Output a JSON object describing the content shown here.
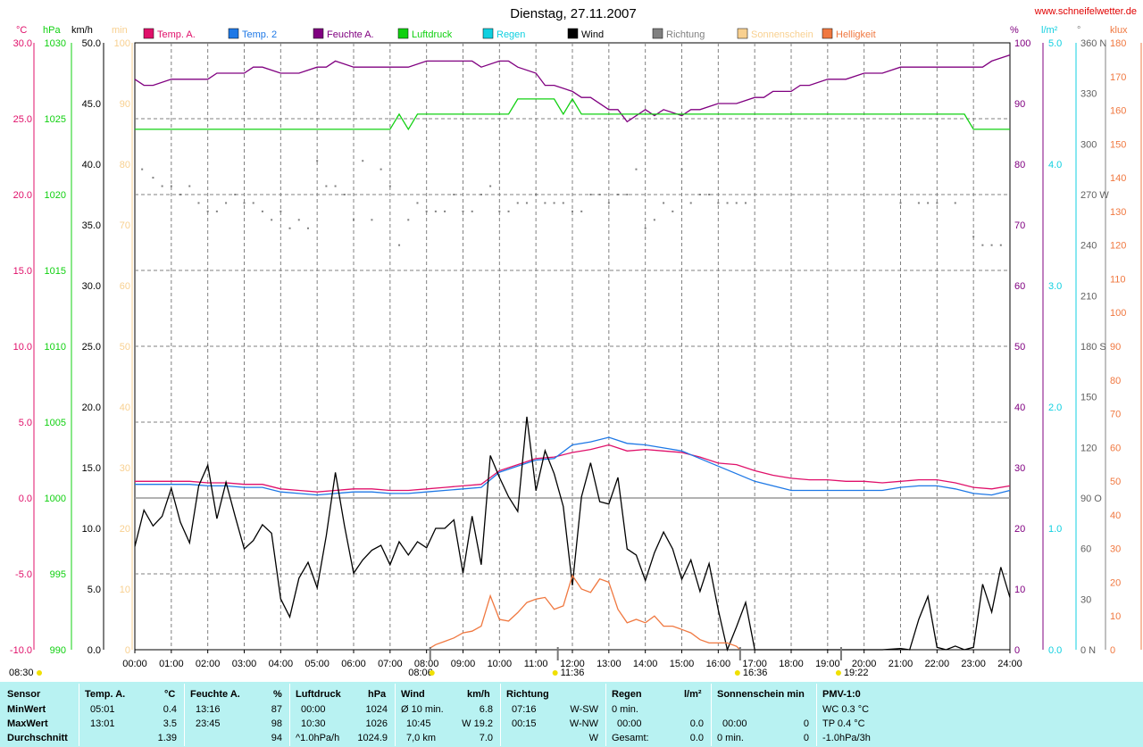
{
  "header": {
    "title": "Dienstag, 27.11.2007",
    "site": "www.schneifelwetter.de"
  },
  "colors": {
    "temp_a": "#e0106a",
    "temp_2": "#1e78e6",
    "feuchte": "#800080",
    "luftdruck": "#10d010",
    "regen": "#10d0e0",
    "wind": "#000000",
    "richtung": "#808080",
    "sonnenschein": "#f8d090",
    "helligkeit": "#f07840",
    "grid": "#808080",
    "stats_bg": "#b8f2f2"
  },
  "axes": {
    "temp": {
      "unit": "°C",
      "ticks": [
        "30.0",
        "25.0",
        "20.0",
        "15.0",
        "10.0",
        "5.0",
        "0.0",
        "-5.0",
        "-10.0"
      ]
    },
    "hpa": {
      "unit": "hPa",
      "ticks": [
        "1030",
        "1025",
        "1020",
        "1015",
        "1010",
        "1005",
        "1000",
        "995",
        "990"
      ]
    },
    "kmh": {
      "unit": "km/h",
      "ticks": [
        "50.0",
        "45.0",
        "40.0",
        "35.0",
        "30.0",
        "25.0",
        "20.0",
        "15.0",
        "10.0",
        "5.0",
        "0.0"
      ]
    },
    "min": {
      "unit": "min",
      "ticks": [
        "100",
        "90",
        "80",
        "70",
        "60",
        "50",
        "40",
        "30",
        "20",
        "10",
        "0"
      ]
    },
    "pct": {
      "unit": "%",
      "ticks": [
        "100",
        "90",
        "80",
        "70",
        "60",
        "50",
        "40",
        "30",
        "20",
        "10",
        "0"
      ]
    },
    "lm2": {
      "unit": "l/m²",
      "ticks": [
        "5.0",
        "4.0",
        "3.0",
        "2.0",
        "1.0",
        "0.0"
      ]
    },
    "deg": {
      "unit": "°",
      "ticks": [
        "360 N",
        "330",
        "300",
        "270 W",
        "240",
        "210",
        "180 S",
        "150",
        "120",
        "90 O",
        "60",
        "30",
        "0 N"
      ]
    },
    "klux": {
      "unit": "klux",
      "ticks": [
        "180",
        "170",
        "160",
        "150",
        "140",
        "130",
        "120",
        "110",
        "100",
        "90",
        "80",
        "70",
        "60",
        "50",
        "40",
        "30",
        "20",
        "10",
        "0"
      ]
    },
    "time": {
      "ticks": [
        "00:00",
        "01:00",
        "02:00",
        "03:00",
        "04:00",
        "05:00",
        "06:00",
        "07:00",
        "08:00",
        "09:00",
        "10:00",
        "11:00",
        "12:00",
        "13:00",
        "14:00",
        "15:00",
        "16:00",
        "17:00",
        "18:00",
        "19:00",
        "20:00",
        "21:00",
        "22:00",
        "23:00",
        "24:00"
      ]
    }
  },
  "sun_markers": [
    {
      "label": "08:30",
      "hour": 8.5
    },
    {
      "label": "08:06",
      "hour": 8.1
    },
    {
      "label": "11:36",
      "hour": 11.6
    },
    {
      "label": "16:36",
      "hour": 16.6
    },
    {
      "label": "19:22",
      "hour": 19.37
    }
  ],
  "chart_data": {
    "type": "line",
    "title": "Dienstag, 27.11.2007",
    "x_unit": "Uhrzeit",
    "xlim": [
      0,
      24
    ],
    "legend_position": "top",
    "grid": true,
    "series": [
      {
        "name": "Temp. A.",
        "key": "temp_a",
        "axis": "temp",
        "range": [
          -10,
          30
        ],
        "x": [
          0,
          0.5,
          1,
          1.5,
          2,
          2.5,
          3,
          3.5,
          4,
          4.5,
          5,
          5.5,
          6,
          6.5,
          7,
          7.5,
          8,
          8.5,
          9,
          9.5,
          10,
          10.5,
          11,
          11.5,
          12,
          12.5,
          13,
          13.5,
          14,
          14.5,
          15,
          15.5,
          16,
          16.5,
          17,
          17.5,
          18,
          18.5,
          19,
          19.5,
          20,
          20.5,
          21,
          21.5,
          22,
          22.5,
          23,
          23.5,
          24
        ],
        "y": [
          1.1,
          1.1,
          1.1,
          1.1,
          1.0,
          1.0,
          0.9,
          0.9,
          0.6,
          0.5,
          0.4,
          0.5,
          0.6,
          0.6,
          0.5,
          0.5,
          0.6,
          0.7,
          0.8,
          0.9,
          1.8,
          2.2,
          2.6,
          2.7,
          3.0,
          3.2,
          3.5,
          3.1,
          3.2,
          3.1,
          3.0,
          2.7,
          2.3,
          2.2,
          1.8,
          1.5,
          1.3,
          1.2,
          1.2,
          1.1,
          1.1,
          1.0,
          1.1,
          1.2,
          1.2,
          1.0,
          0.7,
          0.6,
          0.8
        ]
      },
      {
        "name": "Temp. 2",
        "key": "temp_2",
        "axis": "temp",
        "range": [
          -10,
          30
        ],
        "x": [
          0,
          0.5,
          1,
          1.5,
          2,
          2.5,
          3,
          3.5,
          4,
          4.5,
          5,
          5.5,
          6,
          6.5,
          7,
          7.5,
          8,
          8.5,
          9,
          9.5,
          10,
          10.5,
          11,
          11.5,
          12,
          12.5,
          13,
          13.5,
          14,
          14.5,
          15,
          15.5,
          16,
          16.5,
          17,
          17.5,
          18,
          18.5,
          19,
          19.5,
          20,
          20.5,
          21,
          21.5,
          22,
          22.5,
          23,
          23.5,
          24
        ],
        "y": [
          0.9,
          0.9,
          0.9,
          0.9,
          0.8,
          0.8,
          0.7,
          0.7,
          0.4,
          0.3,
          0.2,
          0.3,
          0.4,
          0.4,
          0.3,
          0.3,
          0.4,
          0.5,
          0.6,
          0.7,
          1.7,
          2.1,
          2.5,
          2.6,
          3.5,
          3.7,
          4.0,
          3.6,
          3.5,
          3.3,
          3.1,
          2.6,
          2.1,
          1.6,
          1.1,
          0.8,
          0.5,
          0.5,
          0.5,
          0.5,
          0.5,
          0.5,
          0.7,
          0.8,
          0.8,
          0.6,
          0.3,
          0.2,
          0.5
        ]
      },
      {
        "name": "Feuchte A.",
        "key": "feuchte",
        "axis": "pct",
        "range": [
          0,
          100
        ],
        "x": [
          0,
          0.25,
          0.5,
          1,
          1.5,
          2,
          2.25,
          2.5,
          3,
          3.25,
          3.5,
          4,
          4.25,
          4.5,
          5,
          5.25,
          5.5,
          6,
          6.25,
          6.5,
          7,
          7.25,
          7.5,
          8,
          8.25,
          8.5,
          9,
          9.25,
          9.5,
          10,
          10.25,
          10.5,
          11,
          11.25,
          11.5,
          12,
          12.25,
          12.5,
          13,
          13.25,
          13.5,
          14,
          14.25,
          14.5,
          15,
          15.25,
          15.5,
          16,
          16.25,
          16.5,
          17,
          17.25,
          17.5,
          18,
          18.25,
          18.5,
          19,
          19.25,
          19.5,
          20,
          20.25,
          20.5,
          21,
          21.5,
          22,
          22.5,
          23,
          23.25,
          23.5,
          24
        ],
        "y": [
          94,
          93,
          93,
          94,
          94,
          94,
          95,
          95,
          95,
          96,
          96,
          95,
          95,
          95,
          96,
          96,
          97,
          96,
          96,
          96,
          96,
          96,
          96,
          97,
          97,
          97,
          97,
          97,
          96,
          97,
          97,
          96,
          95,
          93,
          93,
          92,
          91,
          91,
          89,
          89,
          87,
          89,
          88,
          89,
          88,
          89,
          89,
          90,
          90,
          90,
          91,
          91,
          92,
          92,
          93,
          93,
          94,
          94,
          94,
          95,
          95,
          95,
          96,
          96,
          96,
          96,
          96,
          96,
          97,
          98
        ]
      },
      {
        "name": "Luftdruck",
        "key": "luftdruck",
        "axis": "hpa",
        "range": [
          990,
          1030
        ],
        "x": [
          0,
          7,
          7.25,
          7.5,
          7.75,
          8,
          8,
          9,
          10,
          10.25,
          10.5,
          11,
          11.5,
          11.75,
          12,
          12.25,
          12.5,
          13,
          14,
          15,
          16,
          17,
          18,
          19,
          20,
          21,
          22,
          22.75,
          23,
          24
        ],
        "y": [
          1024.3,
          1024.3,
          1025.3,
          1024.3,
          1025.3,
          1025.3,
          1025.3,
          1025.3,
          1025.3,
          1025.3,
          1026.3,
          1026.3,
          1026.3,
          1025.3,
          1026.3,
          1025.3,
          1025.3,
          1025.3,
          1025.3,
          1025.3,
          1025.3,
          1025.3,
          1025.3,
          1025.3,
          1025.3,
          1025.3,
          1025.3,
          1025.3,
          1024.3,
          1024.3
        ]
      },
      {
        "name": "Regen",
        "key": "regen",
        "axis": "lm2",
        "range": [
          0,
          5
        ],
        "x": [
          0,
          24
        ],
        "y": [
          0.0,
          0.0
        ]
      },
      {
        "name": "Wind",
        "key": "wind",
        "axis": "kmh",
        "range": [
          0,
          50
        ],
        "x": [
          0,
          0.25,
          0.5,
          0.75,
          1,
          1.25,
          1.5,
          1.75,
          2,
          2.25,
          2.5,
          2.75,
          3,
          3.25,
          3.5,
          3.75,
          4,
          4.25,
          4.5,
          4.75,
          5,
          5.25,
          5.5,
          5.75,
          6,
          6.25,
          6.5,
          6.75,
          7,
          7.25,
          7.5,
          7.75,
          8,
          8.25,
          8.5,
          8.75,
          9,
          9.25,
          9.5,
          9.75,
          10,
          10.25,
          10.5,
          10.75,
          11,
          11.25,
          11.5,
          11.75,
          12,
          12.25,
          12.5,
          12.75,
          13,
          13.25,
          13.5,
          13.75,
          14,
          14.25,
          14.5,
          14.75,
          15,
          15.25,
          15.5,
          15.75,
          16,
          16.25,
          16.5,
          16.75,
          17,
          17.5,
          18,
          18.5,
          19,
          19.5,
          20,
          20.5,
          21,
          21.25,
          21.5,
          21.75,
          22,
          22.25,
          22.5,
          22.75,
          23,
          23.25,
          23.5,
          23.75,
          24
        ],
        "y": [
          8.5,
          11.5,
          10.2,
          11.0,
          13.3,
          10.5,
          8.8,
          13.5,
          15.2,
          10.8,
          13.8,
          11.0,
          8.3,
          9.0,
          10.3,
          9.6,
          4.2,
          2.7,
          5.9,
          7.2,
          5.1,
          9.4,
          14.6,
          10.2,
          6.3,
          7.4,
          8.2,
          8.6,
          7.0,
          8.9,
          7.8,
          8.9,
          8.4,
          10.0,
          10.0,
          10.7,
          6.3,
          11.0,
          7.0,
          16.0,
          14.2,
          12.6,
          11.4,
          19.2,
          13.1,
          16.4,
          14.5,
          11.8,
          5.3,
          12.6,
          15.4,
          12.2,
          12.0,
          14.2,
          8.3,
          7.8,
          5.7,
          8.0,
          9.7,
          8.3,
          5.8,
          7.4,
          4.8,
          7.1,
          3.3,
          0.0,
          1.9,
          3.9,
          0.0,
          0.0,
          0.0,
          0.0,
          0.0,
          0.0,
          0.0,
          0.0,
          0.1,
          0.0,
          2.5,
          4.4,
          0.2,
          0.0,
          0.3,
          0.0,
          0.2,
          5.4,
          3.1,
          6.8,
          4.3
        ]
      },
      {
        "name": "Richtung",
        "key": "richtung",
        "axis": "deg",
        "range": [
          0,
          360
        ],
        "x": [
          0.2,
          0.5,
          0.75,
          1,
          1.25,
          1.5,
          1.75,
          2,
          2.25,
          2.5,
          2.75,
          3,
          3.25,
          3.5,
          3.75,
          4,
          4.25,
          4.5,
          4.75,
          5,
          5.25,
          5.5,
          5.75,
          6,
          6.25,
          6.5,
          6.75,
          7,
          7.25,
          7.5,
          7.75,
          8,
          8.25,
          8.5,
          8.75,
          9,
          9.25,
          9.5,
          9.75,
          10,
          10.25,
          10.5,
          10.75,
          11,
          11.25,
          11.5,
          11.75,
          12,
          12.25,
          12.5,
          12.75,
          13,
          13.25,
          13.5,
          13.75,
          14,
          14.25,
          14.5,
          14.75,
          15,
          15.25,
          15.5,
          15.75,
          16,
          16.25,
          16.5,
          16.75,
          21,
          21.5,
          21.75,
          22,
          22.5,
          23,
          23.25,
          23.5,
          23.75
        ],
        "y": [
          285,
          280,
          275,
          275,
          270,
          275,
          265,
          260,
          260,
          265,
          270,
          265,
          265,
          260,
          255,
          260,
          250,
          255,
          250,
          290,
          275,
          275,
          270,
          255,
          290,
          255,
          285,
          275,
          240,
          255,
          265,
          260,
          260,
          260,
          270,
          260,
          260,
          270,
          275,
          260,
          260,
          265,
          265,
          270,
          265,
          265,
          265,
          260,
          260,
          270,
          270,
          265,
          270,
          270,
          285,
          250,
          255,
          265,
          260,
          285,
          265,
          270,
          270,
          265,
          265,
          265,
          265,
          265,
          265,
          265,
          265,
          265,
          245,
          240,
          240,
          240
        ]
      },
      {
        "name": "Sonnenschein",
        "key": "sonnenschein",
        "axis": "min",
        "range": [
          0,
          100
        ],
        "x": [
          0,
          24
        ],
        "y": [
          0,
          0
        ]
      },
      {
        "name": "Helligkeit",
        "key": "helligkeit",
        "axis": "klux",
        "range": [
          0,
          180
        ],
        "x": [
          8.1,
          8.25,
          8.5,
          8.75,
          9,
          9.25,
          9.5,
          9.75,
          10,
          10.25,
          10.5,
          10.75,
          11,
          11.25,
          11.5,
          11.75,
          12,
          12.25,
          12.5,
          12.75,
          13,
          13.25,
          13.5,
          13.75,
          14,
          14.25,
          14.5,
          14.75,
          15,
          15.25,
          15.5,
          15.75,
          16,
          16.25,
          16.5,
          16.6
        ],
        "y": [
          0.5,
          1.5,
          2.5,
          3.5,
          5,
          5.5,
          7,
          16,
          9,
          8.5,
          11,
          14,
          15,
          15.5,
          12,
          13,
          22,
          18,
          17,
          21,
          20,
          12,
          8,
          9,
          8,
          10,
          7,
          7,
          6,
          5,
          3,
          2,
          2,
          2,
          1,
          0
        ]
      }
    ]
  },
  "stats": {
    "headers": {
      "sensor": "Sensor",
      "temp": "Temp. A.",
      "temp_unit": "°C",
      "feuchte": "Feuchte A.",
      "feuchte_unit": "%",
      "luftdruck": "Luftdruck",
      "luftdruck_unit": "hPa",
      "wind": "Wind",
      "wind_unit": "km/h",
      "richtung": "Richtung",
      "regen": "Regen",
      "regen_unit": "l/m²",
      "sonne": "Sonnenschein min",
      "pmv": "PMV-1:0"
    },
    "labels": {
      "min": "MinWert",
      "max": "MaxWert",
      "avg": "Durchschnitt"
    },
    "temp": {
      "min_time": "05:01",
      "min_val": "0.4",
      "max_time": "13:01",
      "max_val": "3.5",
      "avg": "1.39"
    },
    "feuchte": {
      "min_time": "13:16",
      "min_val": "87",
      "max_time": "23:45",
      "max_val": "98",
      "avg": "94"
    },
    "luftdruck": {
      "min_time": "00:00",
      "min_val": "1024",
      "max_time": "10:30",
      "max_val": "1026",
      "avg_label": "^1.0hPa/h",
      "avg": "1024.9"
    },
    "wind": {
      "min_label": "Ø 10 min.",
      "min_val": "6.8",
      "max_time": "10:45",
      "max_val": "W 19.2",
      "avg_label": "7,0 km",
      "avg": "7.0"
    },
    "richtung": {
      "min_time": "07:16",
      "min_val": "W-SW",
      "max_time": "00:15",
      "max_val": "W-NW",
      "avg": "W"
    },
    "regen": {
      "min_label": "0 min.",
      "max_time": "00:00",
      "max_val": "0.0",
      "avg_label": "Gesamt:",
      "avg": "0.0"
    },
    "sonne": {
      "max_time": "00:00",
      "max_val": "0",
      "avg_label": "0 min.",
      "avg": "0"
    },
    "pmv": {
      "l1": "WC 0.3 °C",
      "l2": "TP 0.4 °C",
      "l3": "-1.0hPa/3h"
    }
  }
}
